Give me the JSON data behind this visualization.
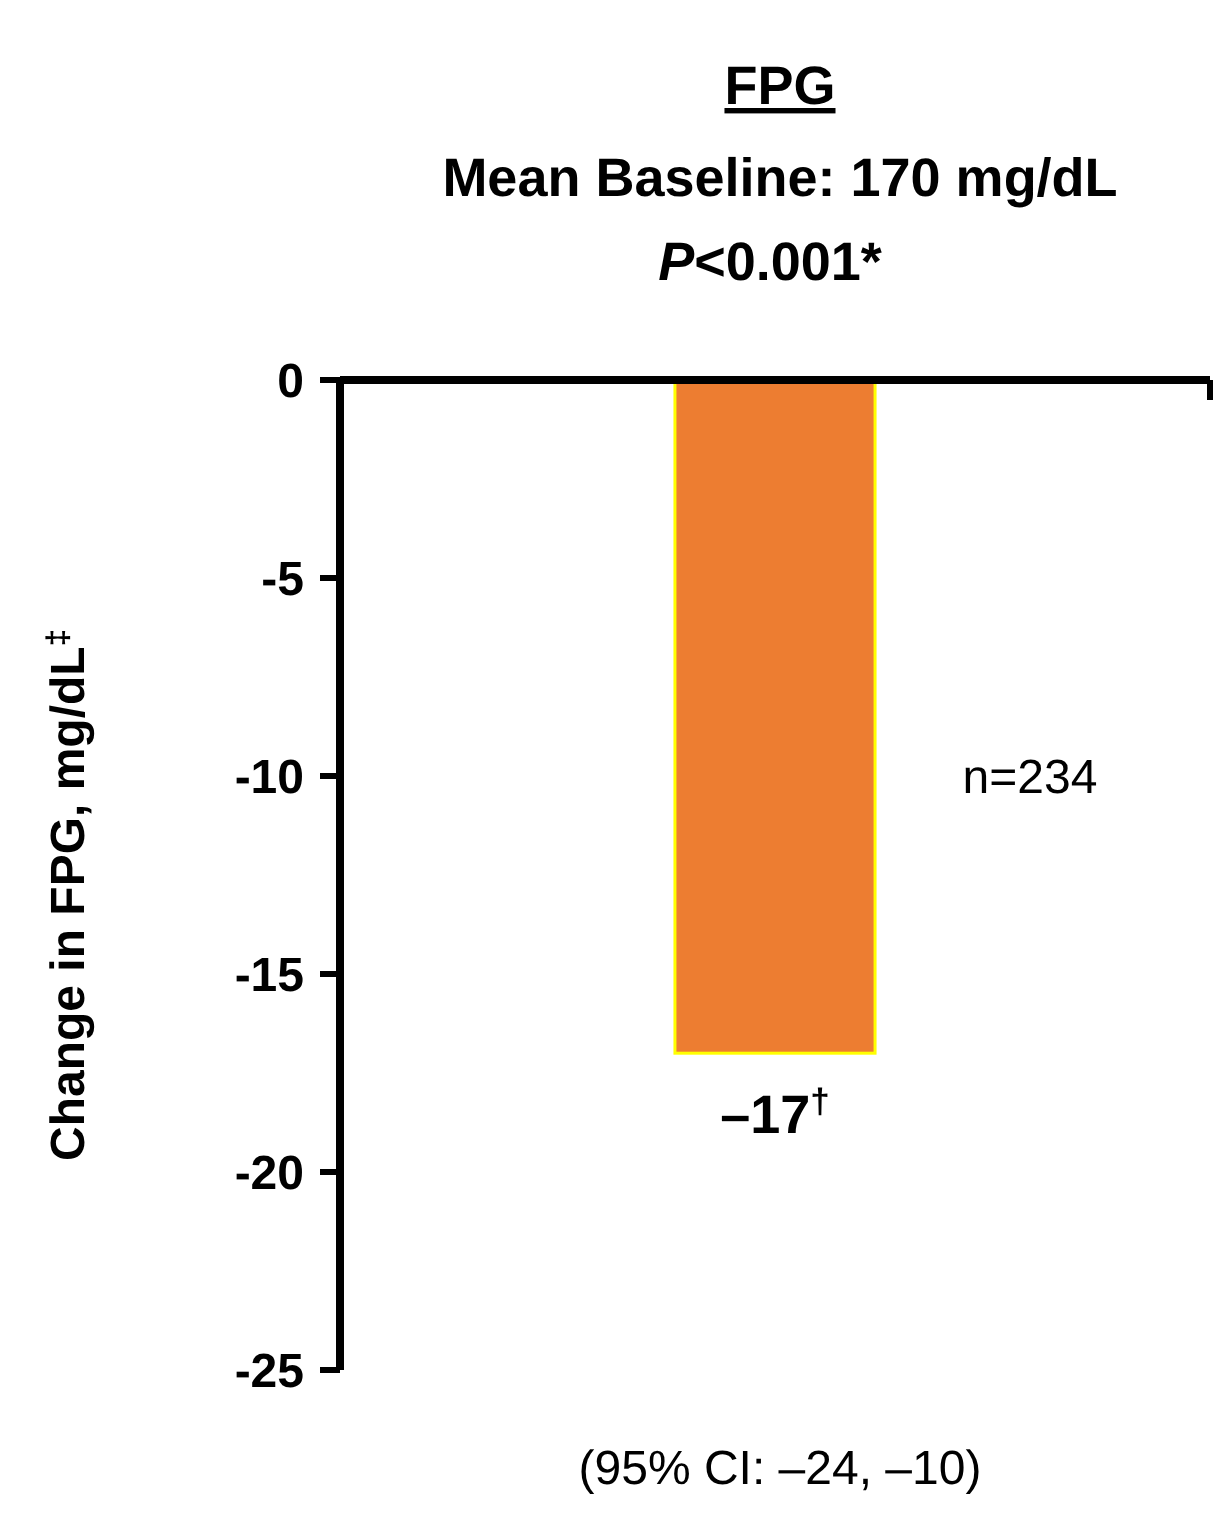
{
  "chart_data": {
    "type": "bar",
    "title": "FPG",
    "subtitle": "Mean Baseline: 170 mg/dL",
    "ylabel": "Change in FPG, mg/dL$^{‡}$",
    "categories": [
      null
    ],
    "values": [
      -17
    ],
    "color": "#ed7d31",
    "value_labels": [
      "–17$^{†}$"
    ],
    "ylim": [
      -25,
      0
    ],
    "yticks": [
      0,
      -5,
      -10,
      -15,
      -20,
      -25
    ],
    "annotations": [
      "P<0.001*",
      "n=234",
      "(95% CI: –24, –10)"
    ]
  }
}
